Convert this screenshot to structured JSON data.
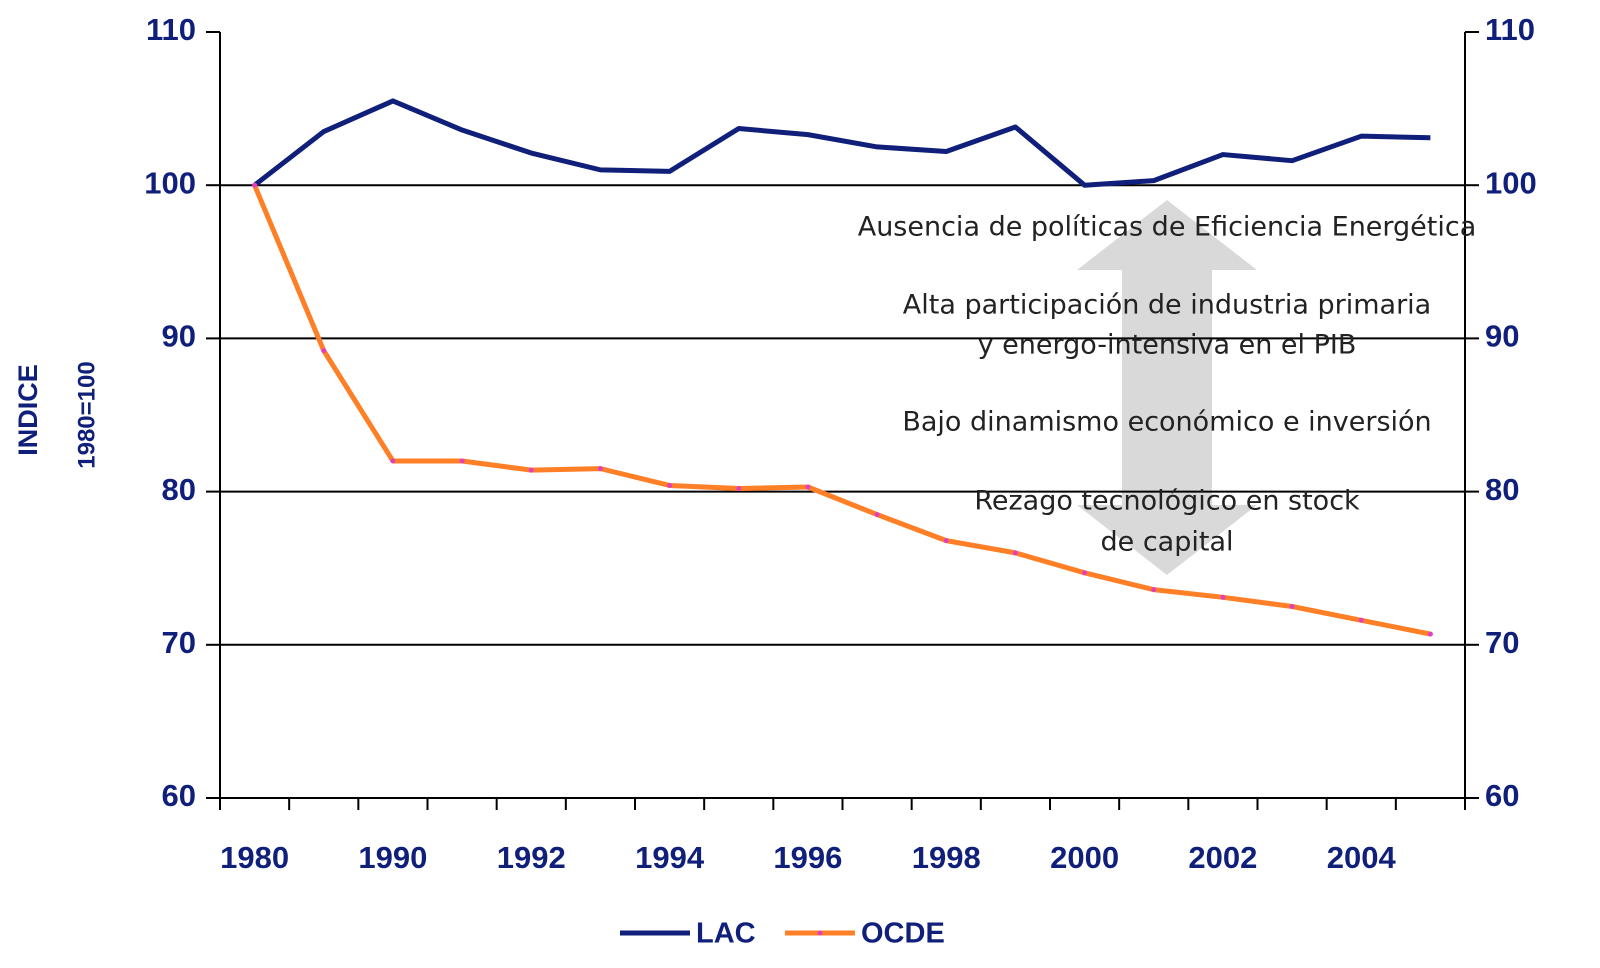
{
  "chart_data": {
    "type": "line",
    "y_label": [
      "INDICE",
      "1980=100"
    ],
    "categories": [
      "1980",
      null,
      "1990",
      null,
      "1992",
      null,
      "1994",
      null,
      "1996",
      null,
      "1998",
      null,
      "2000",
      null,
      "2002",
      null,
      "2004",
      null
    ],
    "series": [
      {
        "name": "LAC",
        "color": "#0f1f7a",
        "values": [
          100,
          103.5,
          105.5,
          103.6,
          102.1,
          101,
          100.9,
          103.7,
          103.3,
          102.5,
          102.2,
          103.8,
          100,
          100.3,
          102,
          101.6,
          103.2,
          103.1
        ]
      },
      {
        "name": "OCDE",
        "color": "#ff7f27",
        "marker_color": "#e040c0",
        "values": [
          100,
          89.2,
          82,
          82,
          81.4,
          81.5,
          80.4,
          80.2,
          80.3,
          78.5,
          76.8,
          76,
          74.7,
          73.6,
          73.1,
          72.5,
          71.6,
          70.7
        ]
      }
    ],
    "ylim": [
      60,
      110
    ],
    "yticks": [
      60,
      70,
      80,
      90,
      100,
      110
    ],
    "y2lim": [
      60,
      110
    ],
    "y2ticks": [
      60,
      70,
      80,
      90,
      100,
      110
    ],
    "grid": true,
    "legend": "bottom",
    "annotations": [
      [
        "Ausencia de políticas de Eficiencia Energética"
      ],
      [
        "Alta participación de industria primaria",
        "y energo-intensiva en el PIB"
      ],
      [
        "Bajo dinamismo económico e inversión"
      ],
      [
        "Rezago tecnológico en stock",
        "de capital"
      ]
    ]
  }
}
